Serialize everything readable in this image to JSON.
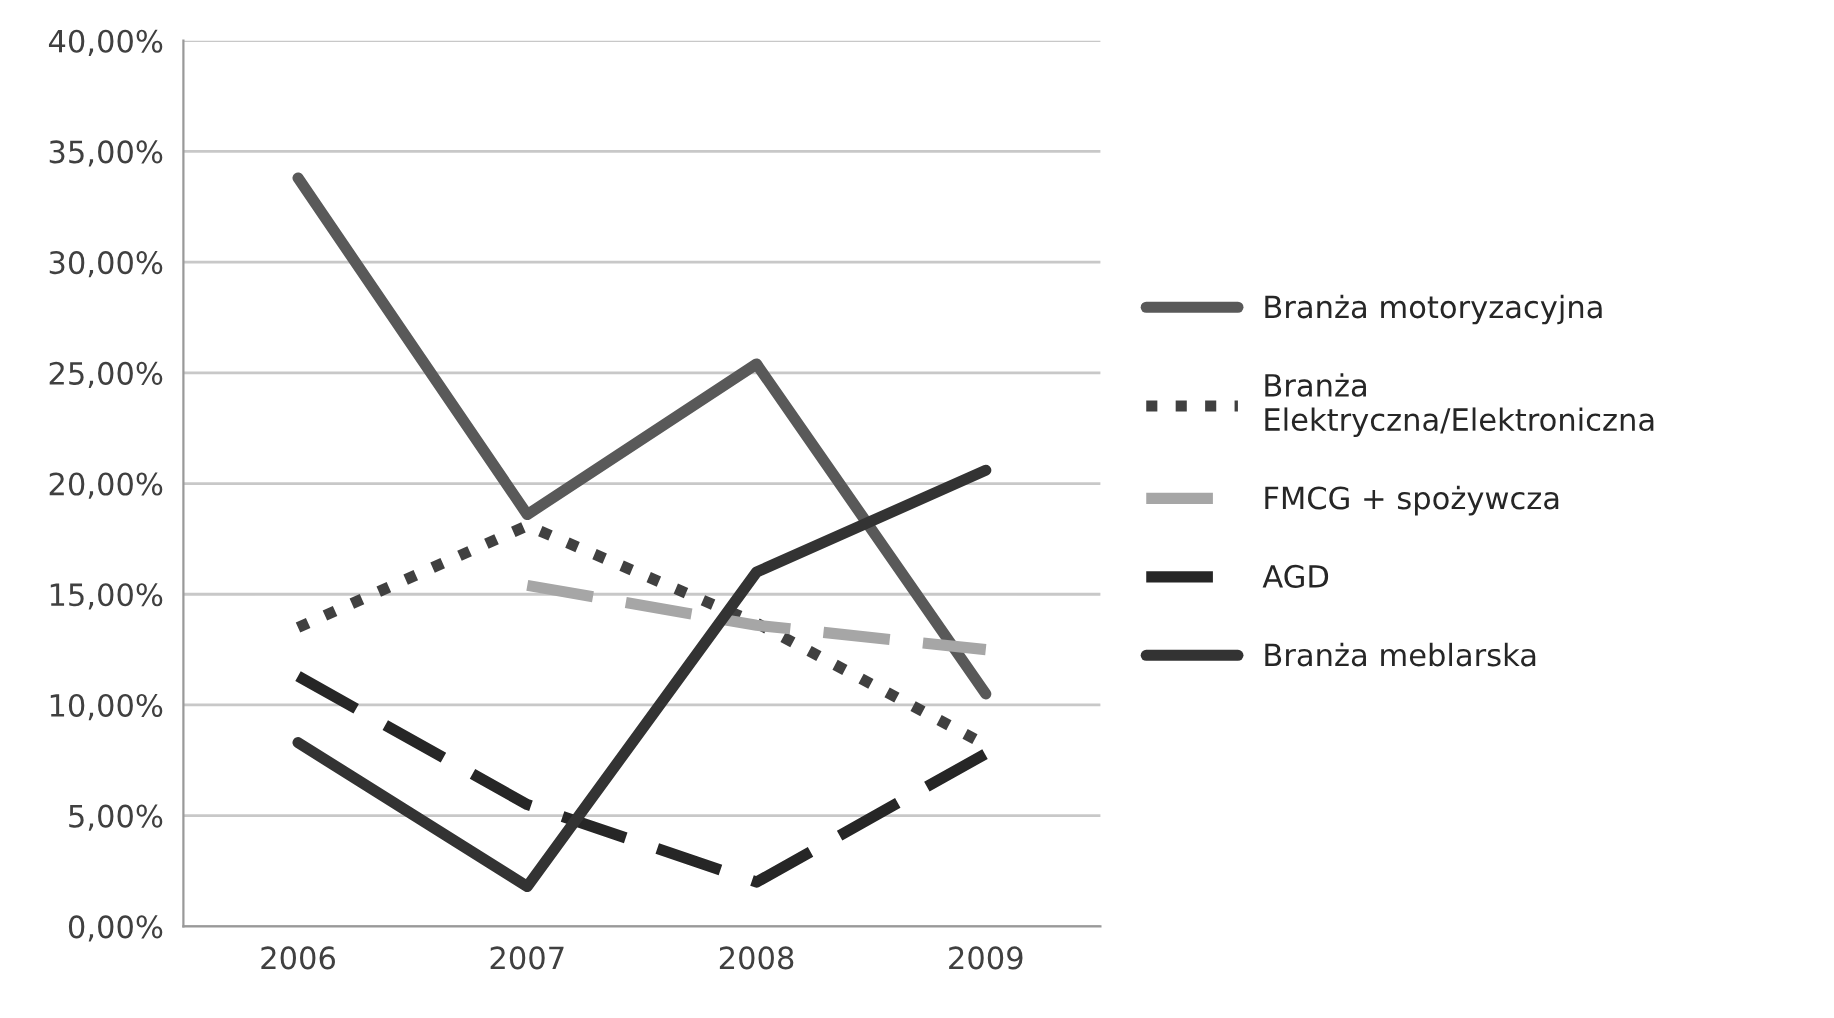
{
  "chart_data": {
    "type": "line",
    "categories": [
      "2006",
      "2007",
      "2008",
      "2009"
    ],
    "series": [
      {
        "name": "Branża motoryzacyjna",
        "color": "#595959",
        "line_style": "solid",
        "values": [
          33.8,
          18.6,
          25.4,
          10.5
        ]
      },
      {
        "name": "Branża\nElektryczna/Elektroniczna",
        "color": "#404040",
        "line_style": "dotted",
        "values": [
          13.5,
          18.1,
          13.7,
          8.2
        ]
      },
      {
        "name": "FMCG + spożywcza",
        "color": "#a6a6a6",
        "line_style": "dashed",
        "values": [
          null,
          15.4,
          13.6,
          12.5
        ]
      },
      {
        "name": "AGD",
        "color": "#262626",
        "line_style": "dashed",
        "values": [
          11.3,
          5.5,
          2.0,
          7.8
        ]
      },
      {
        "name": "Branża meblarska",
        "color": "#333333",
        "line_style": "solid",
        "values": [
          8.3,
          1.8,
          16.0,
          20.6
        ]
      }
    ],
    "ylim": [
      0,
      40
    ],
    "yticks": [
      {
        "value": 0,
        "label": "0,00%"
      },
      {
        "value": 5,
        "label": "5,00%"
      },
      {
        "value": 10,
        "label": "10,00%"
      },
      {
        "value": 15,
        "label": "15,00%"
      },
      {
        "value": 20,
        "label": "20,00%"
      },
      {
        "value": 25,
        "label": "25,00%"
      },
      {
        "value": 30,
        "label": "30,00%"
      },
      {
        "value": 35,
        "label": "35,00%"
      },
      {
        "value": 40,
        "label": "40,00%"
      }
    ],
    "grid": "y",
    "legend": "right",
    "marker": "none"
  }
}
